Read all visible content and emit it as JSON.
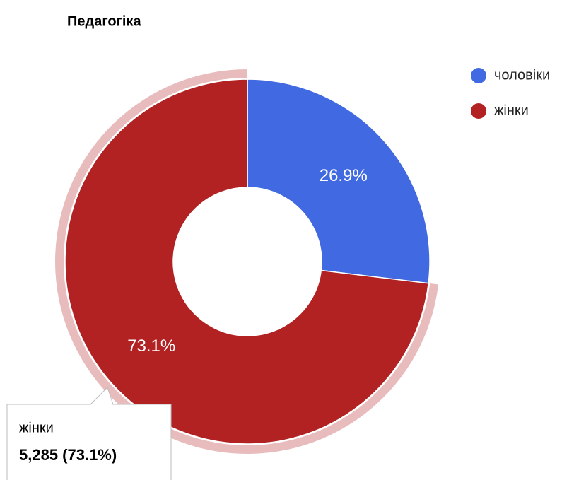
{
  "chart_data": {
    "type": "donut",
    "title": "Педагогіка",
    "categories": [
      "чоловіки",
      "жінки"
    ],
    "values": [
      26.9,
      73.1
    ],
    "value_labels": [
      "26.9%",
      "73.1%"
    ],
    "colors": [
      "#4169e1",
      "#b22222"
    ],
    "legend": "right",
    "tooltip": {
      "series": "жінки",
      "text": "5,285 (73.1%)"
    }
  }
}
